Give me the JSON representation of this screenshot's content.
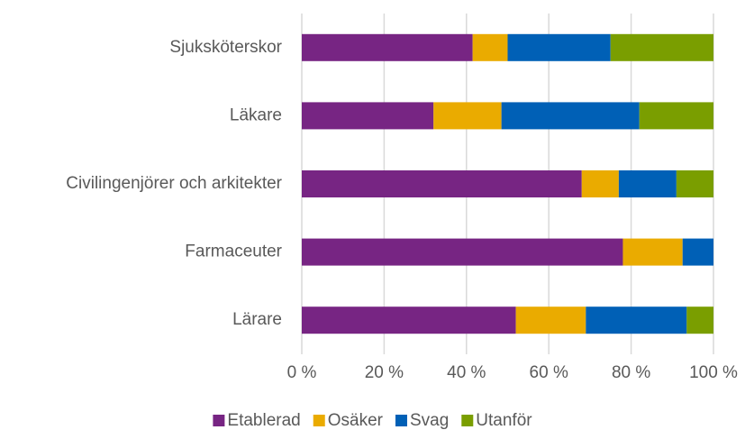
{
  "chart_data": {
    "type": "stacked-barh",
    "categories": [
      "Sjuksköterskor",
      "Läkare",
      "Civilingenjörer och arkitekter",
      "Farmaceuter",
      "Lärare"
    ],
    "series": [
      {
        "name": "Etablerad",
        "color": "#772583",
        "values": [
          41.5,
          32,
          68,
          78,
          52
        ]
      },
      {
        "name": "Osäker",
        "color": "#eaab00",
        "values": [
          8.5,
          16.5,
          9,
          14.5,
          17
        ]
      },
      {
        "name": "Svag",
        "color": "#0060b6",
        "values": [
          25,
          33.5,
          14,
          7.5,
          24.5
        ]
      },
      {
        "name": "Utanför",
        "color": "#7a9e00",
        "values": [
          25,
          18,
          9,
          0,
          6.5
        ]
      }
    ],
    "xlim": [
      0,
      100
    ],
    "xticks": [
      {
        "value": 0,
        "label": "0 %"
      },
      {
        "value": 20,
        "label": "20 %"
      },
      {
        "value": 40,
        "label": "40 %"
      },
      {
        "value": 60,
        "label": "60 %"
      },
      {
        "value": 80,
        "label": "80 %"
      },
      {
        "value": 100,
        "label": "100 %"
      }
    ],
    "grid": true,
    "legend": "bottom"
  }
}
